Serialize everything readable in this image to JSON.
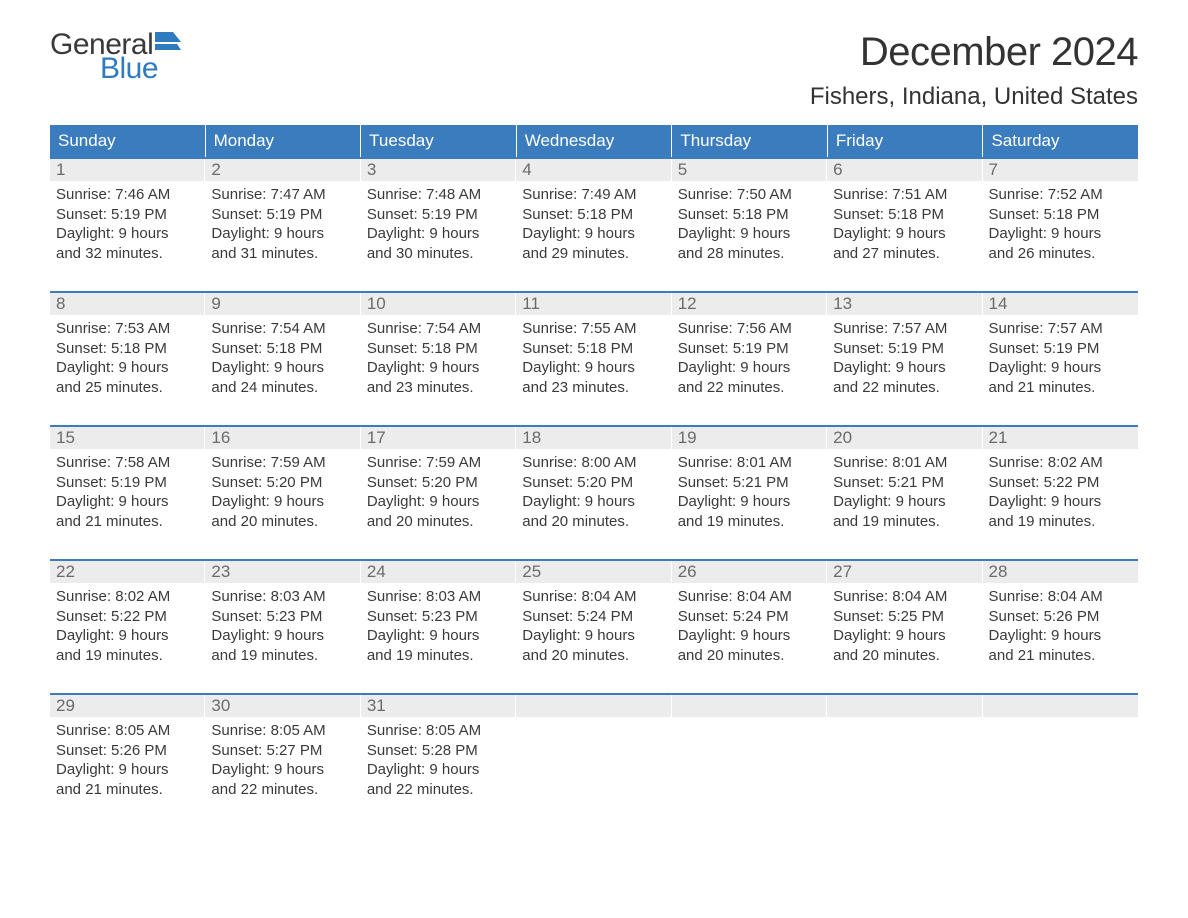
{
  "brand": {
    "line1": "General",
    "line2": "Blue",
    "flag_color": "#2f7bbf"
  },
  "title": "December 2024",
  "location": "Fishers, Indiana, United States",
  "colors": {
    "header_bg": "#3a7cbd",
    "header_text": "#ffffff",
    "daynum_bg": "#ececec",
    "daynum_text": "#6b6b6b",
    "body_text": "#3a3a3a",
    "row_border": "#3a7cbd"
  },
  "weekdays": [
    "Sunday",
    "Monday",
    "Tuesday",
    "Wednesday",
    "Thursday",
    "Friday",
    "Saturday"
  ],
  "weeks": [
    [
      {
        "d": "1",
        "sr": "Sunrise: 7:46 AM",
        "ss": "Sunset: 5:19 PM",
        "dl1": "Daylight: 9 hours",
        "dl2": "and 32 minutes."
      },
      {
        "d": "2",
        "sr": "Sunrise: 7:47 AM",
        "ss": "Sunset: 5:19 PM",
        "dl1": "Daylight: 9 hours",
        "dl2": "and 31 minutes."
      },
      {
        "d": "3",
        "sr": "Sunrise: 7:48 AM",
        "ss": "Sunset: 5:19 PM",
        "dl1": "Daylight: 9 hours",
        "dl2": "and 30 minutes."
      },
      {
        "d": "4",
        "sr": "Sunrise: 7:49 AM",
        "ss": "Sunset: 5:18 PM",
        "dl1": "Daylight: 9 hours",
        "dl2": "and 29 minutes."
      },
      {
        "d": "5",
        "sr": "Sunrise: 7:50 AM",
        "ss": "Sunset: 5:18 PM",
        "dl1": "Daylight: 9 hours",
        "dl2": "and 28 minutes."
      },
      {
        "d": "6",
        "sr": "Sunrise: 7:51 AM",
        "ss": "Sunset: 5:18 PM",
        "dl1": "Daylight: 9 hours",
        "dl2": "and 27 minutes."
      },
      {
        "d": "7",
        "sr": "Sunrise: 7:52 AM",
        "ss": "Sunset: 5:18 PM",
        "dl1": "Daylight: 9 hours",
        "dl2": "and 26 minutes."
      }
    ],
    [
      {
        "d": "8",
        "sr": "Sunrise: 7:53 AM",
        "ss": "Sunset: 5:18 PM",
        "dl1": "Daylight: 9 hours",
        "dl2": "and 25 minutes."
      },
      {
        "d": "9",
        "sr": "Sunrise: 7:54 AM",
        "ss": "Sunset: 5:18 PM",
        "dl1": "Daylight: 9 hours",
        "dl2": "and 24 minutes."
      },
      {
        "d": "10",
        "sr": "Sunrise: 7:54 AM",
        "ss": "Sunset: 5:18 PM",
        "dl1": "Daylight: 9 hours",
        "dl2": "and 23 minutes."
      },
      {
        "d": "11",
        "sr": "Sunrise: 7:55 AM",
        "ss": "Sunset: 5:18 PM",
        "dl1": "Daylight: 9 hours",
        "dl2": "and 23 minutes."
      },
      {
        "d": "12",
        "sr": "Sunrise: 7:56 AM",
        "ss": "Sunset: 5:19 PM",
        "dl1": "Daylight: 9 hours",
        "dl2": "and 22 minutes."
      },
      {
        "d": "13",
        "sr": "Sunrise: 7:57 AM",
        "ss": "Sunset: 5:19 PM",
        "dl1": "Daylight: 9 hours",
        "dl2": "and 22 minutes."
      },
      {
        "d": "14",
        "sr": "Sunrise: 7:57 AM",
        "ss": "Sunset: 5:19 PM",
        "dl1": "Daylight: 9 hours",
        "dl2": "and 21 minutes."
      }
    ],
    [
      {
        "d": "15",
        "sr": "Sunrise: 7:58 AM",
        "ss": "Sunset: 5:19 PM",
        "dl1": "Daylight: 9 hours",
        "dl2": "and 21 minutes."
      },
      {
        "d": "16",
        "sr": "Sunrise: 7:59 AM",
        "ss": "Sunset: 5:20 PM",
        "dl1": "Daylight: 9 hours",
        "dl2": "and 20 minutes."
      },
      {
        "d": "17",
        "sr": "Sunrise: 7:59 AM",
        "ss": "Sunset: 5:20 PM",
        "dl1": "Daylight: 9 hours",
        "dl2": "and 20 minutes."
      },
      {
        "d": "18",
        "sr": "Sunrise: 8:00 AM",
        "ss": "Sunset: 5:20 PM",
        "dl1": "Daylight: 9 hours",
        "dl2": "and 20 minutes."
      },
      {
        "d": "19",
        "sr": "Sunrise: 8:01 AM",
        "ss": "Sunset: 5:21 PM",
        "dl1": "Daylight: 9 hours",
        "dl2": "and 19 minutes."
      },
      {
        "d": "20",
        "sr": "Sunrise: 8:01 AM",
        "ss": "Sunset: 5:21 PM",
        "dl1": "Daylight: 9 hours",
        "dl2": "and 19 minutes."
      },
      {
        "d": "21",
        "sr": "Sunrise: 8:02 AM",
        "ss": "Sunset: 5:22 PM",
        "dl1": "Daylight: 9 hours",
        "dl2": "and 19 minutes."
      }
    ],
    [
      {
        "d": "22",
        "sr": "Sunrise: 8:02 AM",
        "ss": "Sunset: 5:22 PM",
        "dl1": "Daylight: 9 hours",
        "dl2": "and 19 minutes."
      },
      {
        "d": "23",
        "sr": "Sunrise: 8:03 AM",
        "ss": "Sunset: 5:23 PM",
        "dl1": "Daylight: 9 hours",
        "dl2": "and 19 minutes."
      },
      {
        "d": "24",
        "sr": "Sunrise: 8:03 AM",
        "ss": "Sunset: 5:23 PM",
        "dl1": "Daylight: 9 hours",
        "dl2": "and 19 minutes."
      },
      {
        "d": "25",
        "sr": "Sunrise: 8:04 AM",
        "ss": "Sunset: 5:24 PM",
        "dl1": "Daylight: 9 hours",
        "dl2": "and 20 minutes."
      },
      {
        "d": "26",
        "sr": "Sunrise: 8:04 AM",
        "ss": "Sunset: 5:24 PM",
        "dl1": "Daylight: 9 hours",
        "dl2": "and 20 minutes."
      },
      {
        "d": "27",
        "sr": "Sunrise: 8:04 AM",
        "ss": "Sunset: 5:25 PM",
        "dl1": "Daylight: 9 hours",
        "dl2": "and 20 minutes."
      },
      {
        "d": "28",
        "sr": "Sunrise: 8:04 AM",
        "ss": "Sunset: 5:26 PM",
        "dl1": "Daylight: 9 hours",
        "dl2": "and 21 minutes."
      }
    ],
    [
      {
        "d": "29",
        "sr": "Sunrise: 8:05 AM",
        "ss": "Sunset: 5:26 PM",
        "dl1": "Daylight: 9 hours",
        "dl2": "and 21 minutes."
      },
      {
        "d": "30",
        "sr": "Sunrise: 8:05 AM",
        "ss": "Sunset: 5:27 PM",
        "dl1": "Daylight: 9 hours",
        "dl2": "and 22 minutes."
      },
      {
        "d": "31",
        "sr": "Sunrise: 8:05 AM",
        "ss": "Sunset: 5:28 PM",
        "dl1": "Daylight: 9 hours",
        "dl2": "and 22 minutes."
      },
      {
        "d": "",
        "sr": "",
        "ss": "",
        "dl1": "",
        "dl2": ""
      },
      {
        "d": "",
        "sr": "",
        "ss": "",
        "dl1": "",
        "dl2": ""
      },
      {
        "d": "",
        "sr": "",
        "ss": "",
        "dl1": "",
        "dl2": ""
      },
      {
        "d": "",
        "sr": "",
        "ss": "",
        "dl1": "",
        "dl2": ""
      }
    ]
  ]
}
